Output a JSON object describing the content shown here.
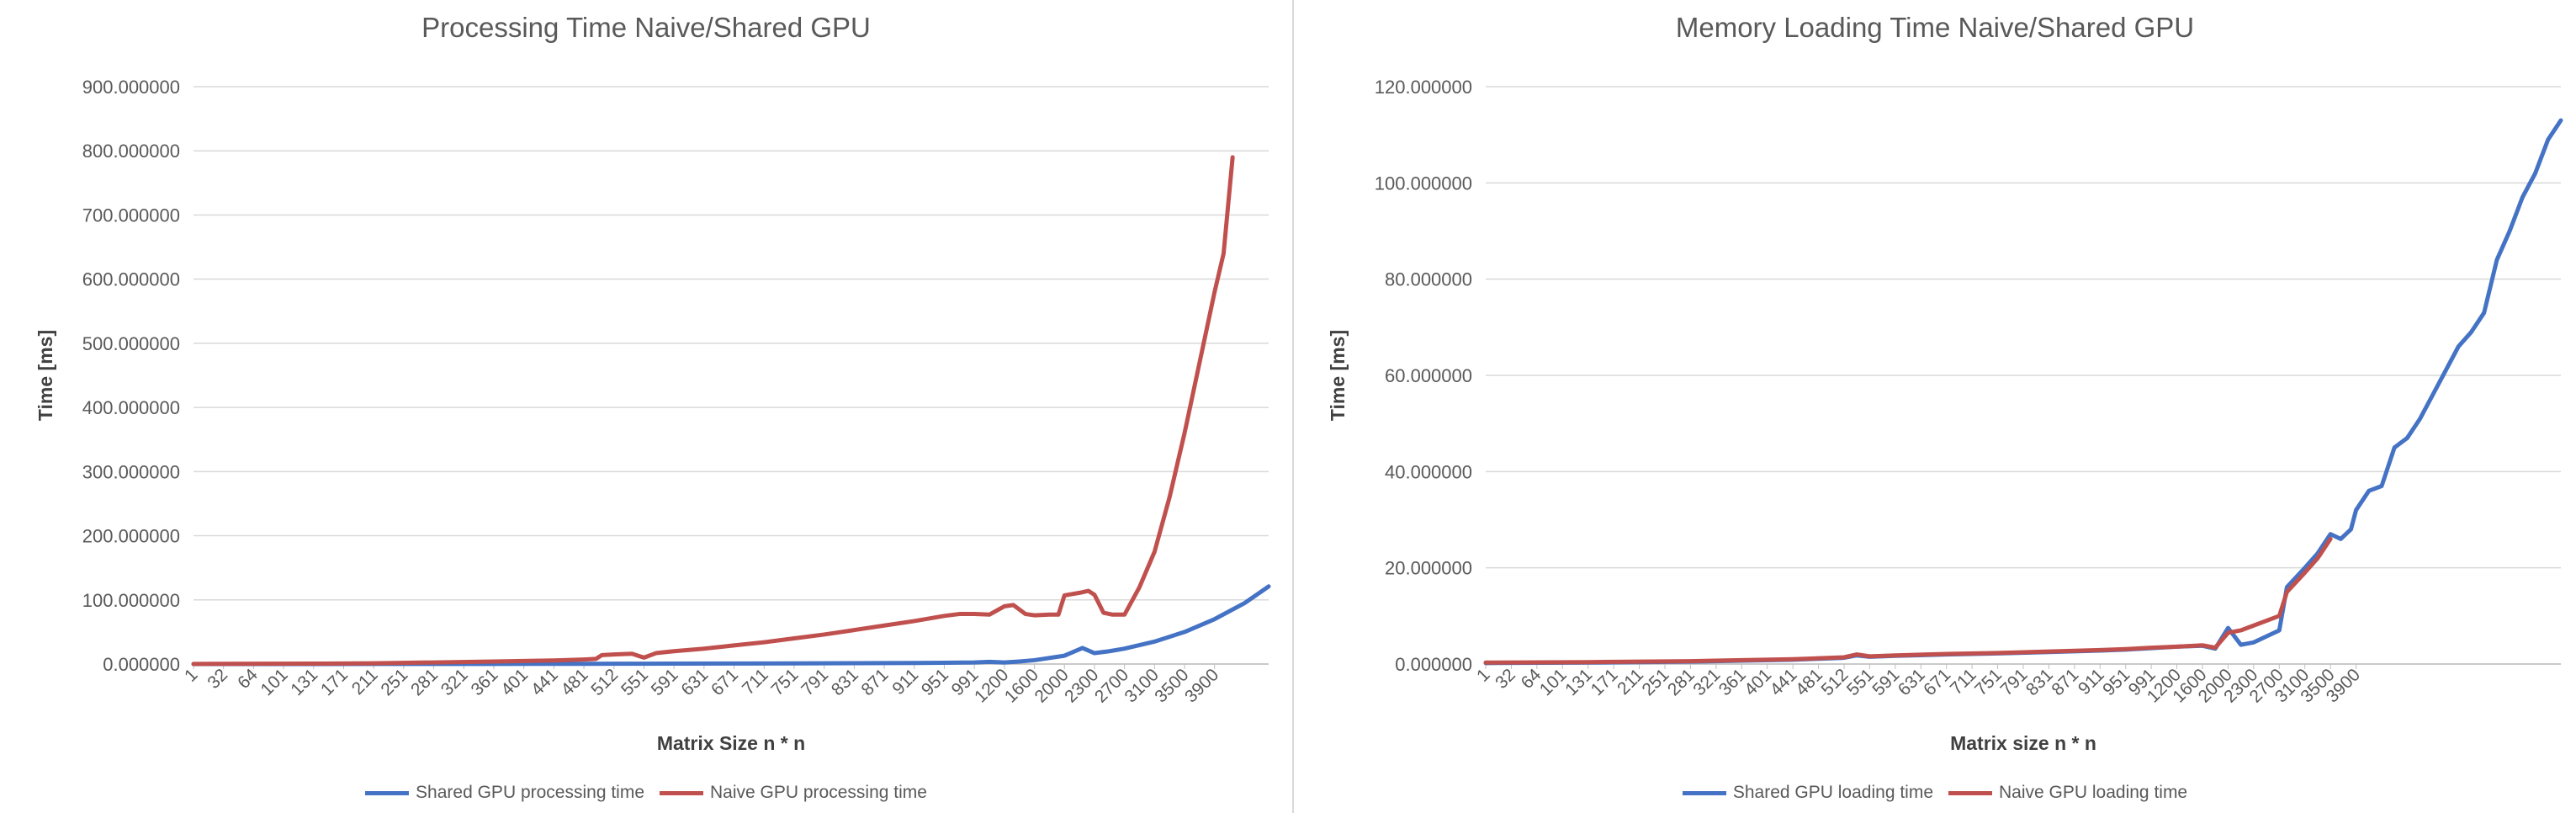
{
  "chart_data": [
    {
      "type": "line",
      "title": "Processing Time Naive/Shared GPU",
      "xlabel": "Matrix Size n * n",
      "ylabel": "Time [ms]",
      "ylim": [
        0,
        900
      ],
      "y_ticks": [
        "0.000000",
        "100.000000",
        "200.000000",
        "300.000000",
        "400.000000",
        "500.000000",
        "600.000000",
        "700.000000",
        "800.000000",
        "900.000000"
      ],
      "x_tick_labels": [
        "1",
        "32",
        "64",
        "101",
        "131",
        "171",
        "211",
        "251",
        "281",
        "321",
        "361",
        "401",
        "441",
        "481",
        "512",
        "551",
        "591",
        "631",
        "671",
        "711",
        "751",
        "791",
        "831",
        "871",
        "911",
        "951",
        "991",
        "1200",
        "1600",
        "2000",
        "2300",
        "2700",
        "3100",
        "3500",
        "3900"
      ],
      "grid": true,
      "legend_position": "bottom",
      "series": [
        {
          "name": "Shared GPU processing time",
          "color": "#4472c4",
          "points": [
            [
              0,
              0.0
            ],
            [
              2,
              0.02
            ],
            [
              4,
              0.05
            ],
            [
              6,
              0.1
            ],
            [
              8,
              0.15
            ],
            [
              10,
              0.2
            ],
            [
              12,
              0.3
            ],
            [
              13,
              0.4
            ],
            [
              14,
              0.5
            ],
            [
              16,
              0.6
            ],
            [
              18,
              0.8
            ],
            [
              20,
              1.0
            ],
            [
              22,
              1.3
            ],
            [
              24,
              1.6
            ],
            [
              25,
              2.0
            ],
            [
              26,
              2.5
            ],
            [
              26.5,
              3.5
            ],
            [
              27,
              2.5
            ],
            [
              27.5,
              4.0
            ],
            [
              28,
              6.0
            ],
            [
              29,
              13.0
            ],
            [
              29.6,
              25.0
            ],
            [
              30,
              17.0
            ],
            [
              30.5,
              20.0
            ],
            [
              31,
              24.0
            ],
            [
              32,
              35.0
            ],
            [
              33,
              50.0
            ],
            [
              34,
              70.0
            ],
            [
              35,
              95.0
            ],
            [
              35.8,
              121.0
            ]
          ]
        },
        {
          "name": "Naive GPU processing time",
          "color": "#c0504d",
          "points": [
            [
              0,
              0.2
            ],
            [
              4,
              0.6
            ],
            [
              6,
              1.2
            ],
            [
              8,
              2.5
            ],
            [
              10,
              4.0
            ],
            [
              12,
              5.5
            ],
            [
              13,
              7.0
            ],
            [
              13.4,
              8.0
            ],
            [
              13.6,
              14.0
            ],
            [
              14,
              15.0
            ],
            [
              14.6,
              16.0
            ],
            [
              15,
              10.0
            ],
            [
              15.4,
              17.0
            ],
            [
              16,
              20.0
            ],
            [
              17,
              24.0
            ],
            [
              18,
              29.0
            ],
            [
              19,
              34.0
            ],
            [
              20,
              40.0
            ],
            [
              21,
              46.0
            ],
            [
              22,
              53.0
            ],
            [
              23,
              60.0
            ],
            [
              24,
              67.0
            ],
            [
              25,
              75.0
            ],
            [
              25.5,
              78.0
            ],
            [
              26,
              78.0
            ],
            [
              26.5,
              77.0
            ],
            [
              27,
              90.0
            ],
            [
              27.3,
              92.0
            ],
            [
              27.7,
              78.0
            ],
            [
              28,
              76.0
            ],
            [
              28.5,
              77.0
            ],
            [
              28.8,
              77.0
            ],
            [
              29,
              107.0
            ],
            [
              29.5,
              111.0
            ],
            [
              29.8,
              114.0
            ],
            [
              30,
              108.0
            ],
            [
              30.3,
              80.0
            ],
            [
              30.6,
              77.0
            ],
            [
              31,
              77.0
            ],
            [
              31.5,
              120.0
            ],
            [
              32,
              175.0
            ],
            [
              32.5,
              260.0
            ],
            [
              33,
              360.0
            ],
            [
              33.5,
              470.0
            ],
            [
              34,
              580.0
            ],
            [
              34.3,
              640.0
            ],
            [
              34.6,
              790.0
            ]
          ]
        }
      ]
    },
    {
      "type": "line",
      "title": "Memory Loading Time Naive/Shared GPU",
      "xlabel": "Matrix size n * n",
      "ylabel": "Time [ms]",
      "ylim": [
        0,
        120
      ],
      "y_ticks": [
        "0.000000",
        "20.000000",
        "40.000000",
        "60.000000",
        "80.000000",
        "100.000000",
        "120.000000"
      ],
      "x_tick_labels": [
        "1",
        "32",
        "64",
        "101",
        "131",
        "171",
        "211",
        "251",
        "281",
        "321",
        "361",
        "401",
        "441",
        "481",
        "512",
        "551",
        "591",
        "631",
        "671",
        "711",
        "751",
        "791",
        "831",
        "871",
        "911",
        "951",
        "991",
        "1200",
        "1600",
        "2000",
        "2300",
        "2700",
        "3100",
        "3500",
        "3900"
      ],
      "grid": true,
      "legend_position": "bottom",
      "series": [
        {
          "name": "Shared GPU loading time",
          "color": "#4472c4",
          "points": [
            [
              0,
              0.2
            ],
            [
              4,
              0.3
            ],
            [
              8,
              0.5
            ],
            [
              10,
              0.7
            ],
            [
              12,
              0.9
            ],
            [
              13,
              1.1
            ],
            [
              14,
              1.3
            ],
            [
              14.5,
              1.8
            ],
            [
              15,
              1.5
            ],
            [
              16,
              1.7
            ],
            [
              18,
              2.0
            ],
            [
              20,
              2.2
            ],
            [
              22,
              2.5
            ],
            [
              24,
              2.8
            ],
            [
              25,
              3.0
            ],
            [
              26,
              3.3
            ],
            [
              27,
              3.6
            ],
            [
              28,
              3.8
            ],
            [
              28.5,
              3.2
            ],
            [
              29,
              7.5
            ],
            [
              29.5,
              4.0
            ],
            [
              30,
              4.5
            ],
            [
              31,
              7.0
            ],
            [
              31.3,
              16.0
            ],
            [
              32,
              20.0
            ],
            [
              32.5,
              23.0
            ],
            [
              33,
              27.0
            ],
            [
              33.4,
              26.0
            ],
            [
              33.8,
              28.0
            ],
            [
              34,
              32.0
            ],
            [
              34.5,
              36.0
            ],
            [
              35,
              37.0
            ],
            [
              35.5,
              45.0
            ],
            [
              36,
              47.0
            ],
            [
              36.5,
              51.0
            ],
            [
              37,
              56.0
            ],
            [
              37.5,
              61.0
            ],
            [
              38,
              66.0
            ],
            [
              38.5,
              69.0
            ],
            [
              39,
              73.0
            ],
            [
              39.5,
              84.0
            ],
            [
              40,
              90.0
            ],
            [
              40.5,
              97.0
            ],
            [
              41,
              102.0
            ],
            [
              41.5,
              109.0
            ],
            [
              42,
              113.0
            ]
          ]
        },
        {
          "name": "Naive GPU loading time",
          "color": "#c0504d",
          "points": [
            [
              0,
              0.3
            ],
            [
              4,
              0.4
            ],
            [
              8,
              0.6
            ],
            [
              10,
              0.8
            ],
            [
              12,
              1.0
            ],
            [
              13,
              1.2
            ],
            [
              14,
              1.4
            ],
            [
              14.5,
              2.0
            ],
            [
              15,
              1.6
            ],
            [
              16,
              1.8
            ],
            [
              18,
              2.1
            ],
            [
              20,
              2.3
            ],
            [
              22,
              2.6
            ],
            [
              24,
              2.9
            ],
            [
              25,
              3.1
            ],
            [
              26,
              3.4
            ],
            [
              27,
              3.6
            ],
            [
              28,
              3.9
            ],
            [
              28.5,
              3.4
            ],
            [
              29,
              6.5
            ],
            [
              29.5,
              7.0
            ],
            [
              30,
              8.0
            ],
            [
              31,
              10.0
            ],
            [
              31.3,
              15.0
            ],
            [
              32,
              19.0
            ],
            [
              32.5,
              22.0
            ],
            [
              33,
              26.0
            ]
          ]
        }
      ]
    }
  ]
}
